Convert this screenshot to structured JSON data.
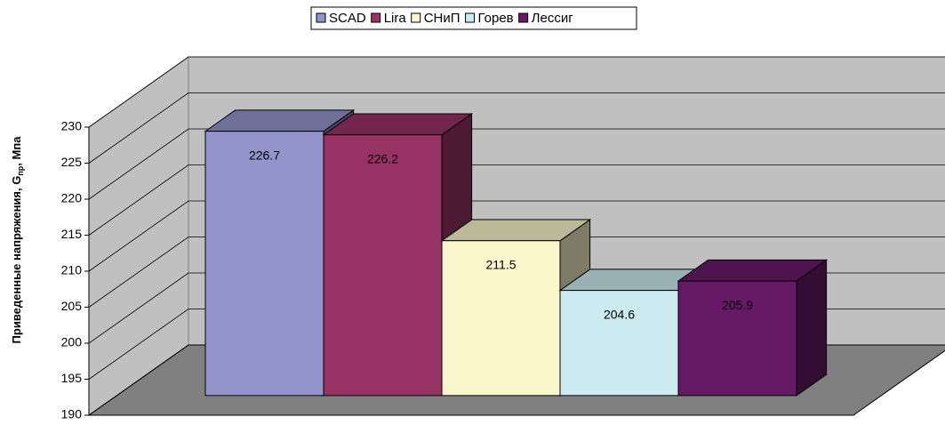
{
  "chart_data": {
    "type": "bar3d",
    "ylabel": "Приведенные напряжения, G",
    "ylabel_sub": "пр",
    "ylabel_suffix": ", Мпа",
    "series": [
      {
        "name": "SCAD",
        "color": "#9494cc",
        "values": [
          226.7
        ]
      },
      {
        "name": "Lira",
        "color": "#993366",
        "values": [
          226.2
        ]
      },
      {
        "name": "СНиП",
        "color": "#fbf7cc",
        "values": [
          211.5
        ]
      },
      {
        "name": "Горев",
        "color": "#ccebf0",
        "values": [
          204.6
        ]
      },
      {
        "name": "Лессиг",
        "color": "#661a66",
        "values": [
          205.9
        ]
      }
    ],
    "ylim": [
      190,
      230
    ],
    "yticks": [
      190,
      195,
      200,
      205,
      210,
      215,
      220,
      225,
      230
    ],
    "grid": true,
    "legend": "top"
  }
}
